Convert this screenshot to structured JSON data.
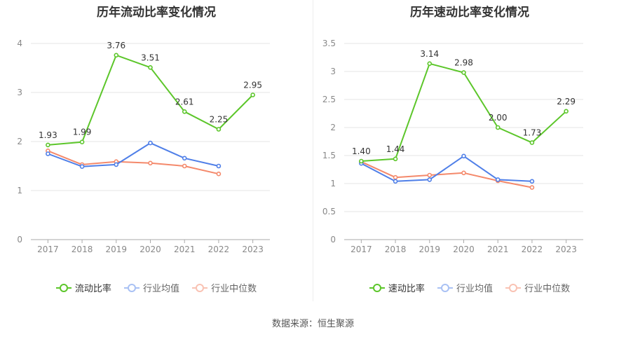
{
  "source": "数据来源：恒生聚源",
  "colors": {
    "green": "#5cc62a",
    "blue": "#4f7fe8",
    "orange": "#f4896b"
  },
  "chart_data": [
    {
      "type": "line",
      "title": "历年流动比率变化情况",
      "x": [
        "2017",
        "2018",
        "2019",
        "2020",
        "2021",
        "2022",
        "2023"
      ],
      "ylim": [
        0,
        4
      ],
      "yticks": [
        "0",
        "1",
        "2",
        "3",
        "4"
      ],
      "grid": true,
      "legend_position": "bottom",
      "series": [
        {
          "name": "流动比率",
          "color": "#5cc62a",
          "labeled": true,
          "values": [
            1.93,
            1.99,
            3.76,
            3.51,
            2.61,
            2.25,
            2.95
          ],
          "labels": [
            "1.93",
            "1.99",
            "3.76",
            "3.51",
            "2.61",
            "2.25",
            "2.95"
          ]
        },
        {
          "name": "行业均值",
          "color": "#4f7fe8",
          "labeled": false,
          "values": [
            1.75,
            1.49,
            1.53,
            1.97,
            1.66,
            1.5,
            null
          ]
        },
        {
          "name": "行业中位数",
          "color": "#f4896b",
          "labeled": false,
          "values": [
            1.81,
            1.53,
            1.59,
            1.56,
            1.5,
            1.34,
            null
          ]
        }
      ]
    },
    {
      "type": "line",
      "title": "历年速动比率变化情况",
      "x": [
        "2017",
        "2018",
        "2019",
        "2020",
        "2021",
        "2022",
        "2023"
      ],
      "ylim": [
        0,
        3.5
      ],
      "yticks": [
        "0",
        "0.5",
        "1",
        "1.5",
        "2",
        "2.5",
        "3",
        "3.5"
      ],
      "grid": true,
      "legend_position": "bottom",
      "series": [
        {
          "name": "速动比率",
          "color": "#5cc62a",
          "labeled": true,
          "values": [
            1.4,
            1.44,
            3.14,
            2.98,
            2.0,
            1.73,
            2.29
          ],
          "labels": [
            "1.40",
            "1.44",
            "3.14",
            "2.98",
            "2.00",
            "1.73",
            "2.29"
          ]
        },
        {
          "name": "行业均值",
          "color": "#4f7fe8",
          "labeled": false,
          "values": [
            1.36,
            1.04,
            1.07,
            1.49,
            1.07,
            1.04,
            null
          ]
        },
        {
          "name": "行业中位数",
          "color": "#f4896b",
          "labeled": false,
          "values": [
            1.39,
            1.11,
            1.15,
            1.19,
            1.05,
            0.93,
            null
          ]
        }
      ]
    }
  ]
}
